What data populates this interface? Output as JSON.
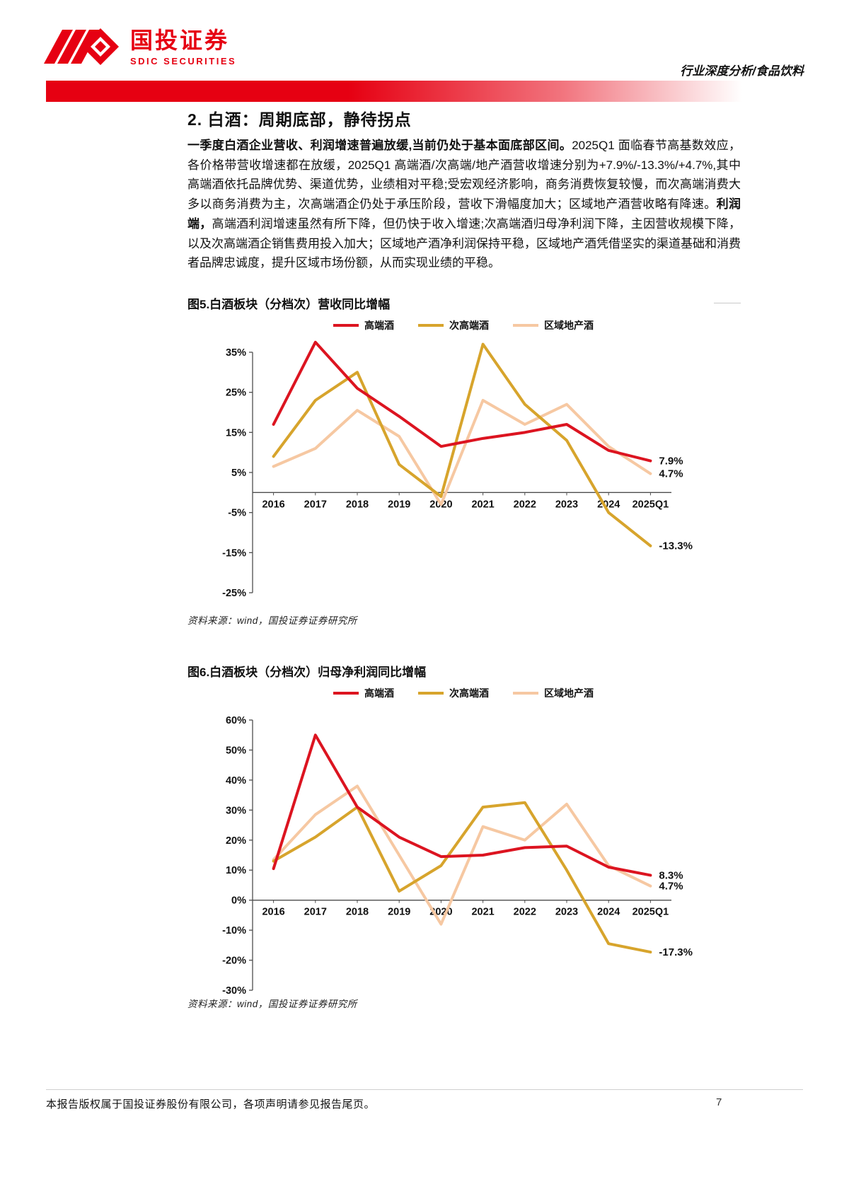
{
  "header": {
    "logo_title": "国投证券",
    "logo_subtitle": "SDIC SECURITIES",
    "report_type": "行业深度分析/食品饮料"
  },
  "section": {
    "title": "2. 白酒：周期底部，静待拐点",
    "lead_bold": "一季度白酒企业营收、利润增速普遍放缓,当前仍处于基本面底部区间。",
    "body1": "2025Q1 面临春节高基数效应，各价格带营收增速都在放缓，2025Q1 高端酒/次高端/地产酒营收增速分别为+7.9%/-13.3%/+4.7%,其中高端酒依托品牌优势、渠道优势，业绩相对平稳;受宏观经济影响，商务消费恢复较慢，而次高端消费大多以商务消费为主，次高端酒企仍处于承压阶段，营收下滑幅度加大；区域地产酒营收略有降速。",
    "mid_bold": "利润端，",
    "body2": "高端酒利润增速虽然有所下降，但仍快于收入增速;次高端酒归母净利润下降，主因营收规模下降，以及次高端酒企销售费用投入加大；区域地产酒净利润保持平稳，区域地产酒凭借坚实的渠道基础和消费者品牌忠诚度，提升区域市场份额，从而实现业绩的平稳。"
  },
  "footer": {
    "copyright": "本报告版权属于国投证券股份有限公司，各项声明请参见报告尾页。",
    "page_number": "7"
  },
  "chart_data": [
    {
      "type": "line",
      "title": "图5.白酒板块（分档次）营收同比增幅",
      "source": "资料来源：wind，国投证券证券研究所",
      "categories": [
        "2016",
        "2017",
        "2018",
        "2019",
        "2020",
        "2021",
        "2022",
        "2023",
        "2024",
        "2025Q1"
      ],
      "series": [
        {
          "name": "高端酒",
          "color": "#dc1420",
          "values": [
            17,
            37.5,
            26,
            19,
            11.5,
            13.5,
            15,
            17,
            10.5,
            7.9
          ],
          "end_label": "7.9%"
        },
        {
          "name": "次高端酒",
          "color": "#d7a42c",
          "values": [
            9,
            23,
            30,
            7,
            -1,
            37,
            22,
            13,
            -5,
            -13.3
          ],
          "end_label": "-13.3%"
        },
        {
          "name": "区域地产酒",
          "color": "#f6c8a2",
          "values": [
            6.5,
            11,
            20.5,
            14,
            -3,
            23,
            17,
            22,
            11.5,
            4.7
          ],
          "end_label": "4.7%"
        }
      ],
      "ylim": [
        -25,
        35
      ],
      "yticks": [
        35,
        25,
        15,
        5,
        -5,
        -15,
        -25
      ],
      "legend_position": "top",
      "grid": false,
      "xlabel": "",
      "ylabel": ""
    },
    {
      "type": "line",
      "title": "图6.白酒板块（分档次）归母净利润同比增幅",
      "source": "资料来源：wind，国投证券证券研究所",
      "categories": [
        "2016",
        "2017",
        "2018",
        "2019",
        "2020",
        "2021",
        "2022",
        "2023",
        "2024",
        "2025Q1"
      ],
      "series": [
        {
          "name": "高端酒",
          "color": "#dc1420",
          "values": [
            10.5,
            55,
            31,
            21,
            14.5,
            15,
            17.5,
            18,
            11,
            8.3
          ],
          "end_label": "8.3%"
        },
        {
          "name": "次高端酒",
          "color": "#d7a42c",
          "values": [
            13,
            21,
            31,
            3,
            11.5,
            31,
            32.5,
            10,
            -14.5,
            -17.3
          ],
          "end_label": "-17.3%"
        },
        {
          "name": "区域地产酒",
          "color": "#f6c8a2",
          "values": [
            13.5,
            28.5,
            38,
            15,
            -8,
            24.5,
            20,
            32,
            11.5,
            4.7
          ],
          "end_label": "4.7%"
        }
      ],
      "ylim": [
        -30,
        60
      ],
      "yticks": [
        60,
        50,
        40,
        30,
        20,
        10,
        0,
        -10,
        -20,
        -30
      ],
      "legend_position": "top",
      "grid": false,
      "xlabel": "",
      "ylabel": ""
    }
  ]
}
